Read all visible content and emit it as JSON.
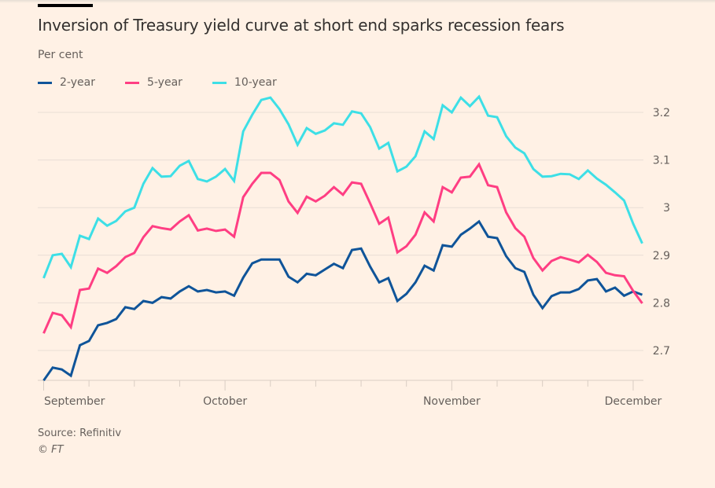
{
  "title": "Inversion of Treasury yield curve at short end sparks recession fears",
  "subtitle": "Per cent",
  "source": "Source: Refinitiv",
  "copyright": "© FT",
  "chart_data": {
    "type": "line",
    "title": "Inversion of Treasury yield curve at short end sparks recession fears",
    "ylabel": "Per cent",
    "xlabel": "",
    "ylim": [
      2.63,
      3.25
    ],
    "yticks": [
      2.7,
      2.8,
      2.9,
      3,
      3.1,
      3.2
    ],
    "ytick_labels": [
      "2.7",
      "2.8",
      "2.9",
      "3",
      "3.1",
      "3.2"
    ],
    "y_axis_side": "right",
    "grid": true,
    "legend_position": "top-left",
    "x_count": 67,
    "x_labels": [
      {
        "index": 0,
        "label": "September"
      },
      {
        "index": 20,
        "label": "October"
      },
      {
        "index": 45,
        "label": "November"
      },
      {
        "index": 65,
        "label": "December"
      }
    ],
    "x_minor_tick_every": 5,
    "series": [
      {
        "name": "2-year",
        "color": "#0f5499",
        "values": [
          2.637,
          2.664,
          2.66,
          2.647,
          2.711,
          2.72,
          2.753,
          2.758,
          2.766,
          2.791,
          2.787,
          2.804,
          2.8,
          2.812,
          2.809,
          2.824,
          2.835,
          2.824,
          2.827,
          2.822,
          2.824,
          2.815,
          2.853,
          2.883,
          2.891,
          2.891,
          2.891,
          2.855,
          2.843,
          2.861,
          2.858,
          2.87,
          2.882,
          2.873,
          2.911,
          2.914,
          2.876,
          2.843,
          2.852,
          2.804,
          2.819,
          2.843,
          2.878,
          2.868,
          2.921,
          2.918,
          2.943,
          2.956,
          2.971,
          2.939,
          2.936,
          2.898,
          2.873,
          2.865,
          2.817,
          2.789,
          2.814,
          2.822,
          2.822,
          2.829,
          2.847,
          2.85,
          2.824,
          2.832,
          2.815,
          2.824,
          2.817
        ]
      },
      {
        "name": "5-year",
        "color": "#ff3e83",
        "values": [
          2.736,
          2.779,
          2.774,
          2.749,
          2.827,
          2.83,
          2.872,
          2.863,
          2.877,
          2.896,
          2.905,
          2.938,
          2.961,
          2.957,
          2.954,
          2.971,
          2.984,
          2.952,
          2.956,
          2.951,
          2.954,
          2.939,
          3.022,
          3.05,
          3.073,
          3.073,
          3.058,
          3.013,
          2.989,
          3.023,
          3.013,
          3.025,
          3.043,
          3.027,
          3.053,
          3.05,
          3.009,
          2.966,
          2.979,
          2.906,
          2.919,
          2.943,
          2.99,
          2.971,
          3.043,
          3.032,
          3.063,
          3.065,
          3.091,
          3.047,
          3.043,
          2.99,
          2.957,
          2.939,
          2.894,
          2.868,
          2.888,
          2.896,
          2.891,
          2.885,
          2.901,
          2.886,
          2.863,
          2.858,
          2.856,
          2.825,
          2.799
        ]
      },
      {
        "name": "10-year",
        "color": "#3ddfe6",
        "values": [
          2.852,
          2.9,
          2.903,
          2.875,
          2.941,
          2.934,
          2.977,
          2.962,
          2.972,
          2.992,
          3.0,
          3.05,
          3.083,
          3.065,
          3.066,
          3.088,
          3.098,
          3.06,
          3.055,
          3.065,
          3.081,
          3.056,
          3.16,
          3.195,
          3.226,
          3.231,
          3.207,
          3.175,
          3.132,
          3.167,
          3.155,
          3.162,
          3.177,
          3.174,
          3.202,
          3.198,
          3.169,
          3.124,
          3.136,
          3.076,
          3.086,
          3.108,
          3.16,
          3.144,
          3.215,
          3.2,
          3.231,
          3.213,
          3.233,
          3.193,
          3.19,
          3.15,
          3.126,
          3.114,
          3.081,
          3.065,
          3.066,
          3.071,
          3.07,
          3.06,
          3.078,
          3.061,
          3.048,
          3.032,
          3.015,
          2.966,
          2.925
        ]
      }
    ]
  }
}
